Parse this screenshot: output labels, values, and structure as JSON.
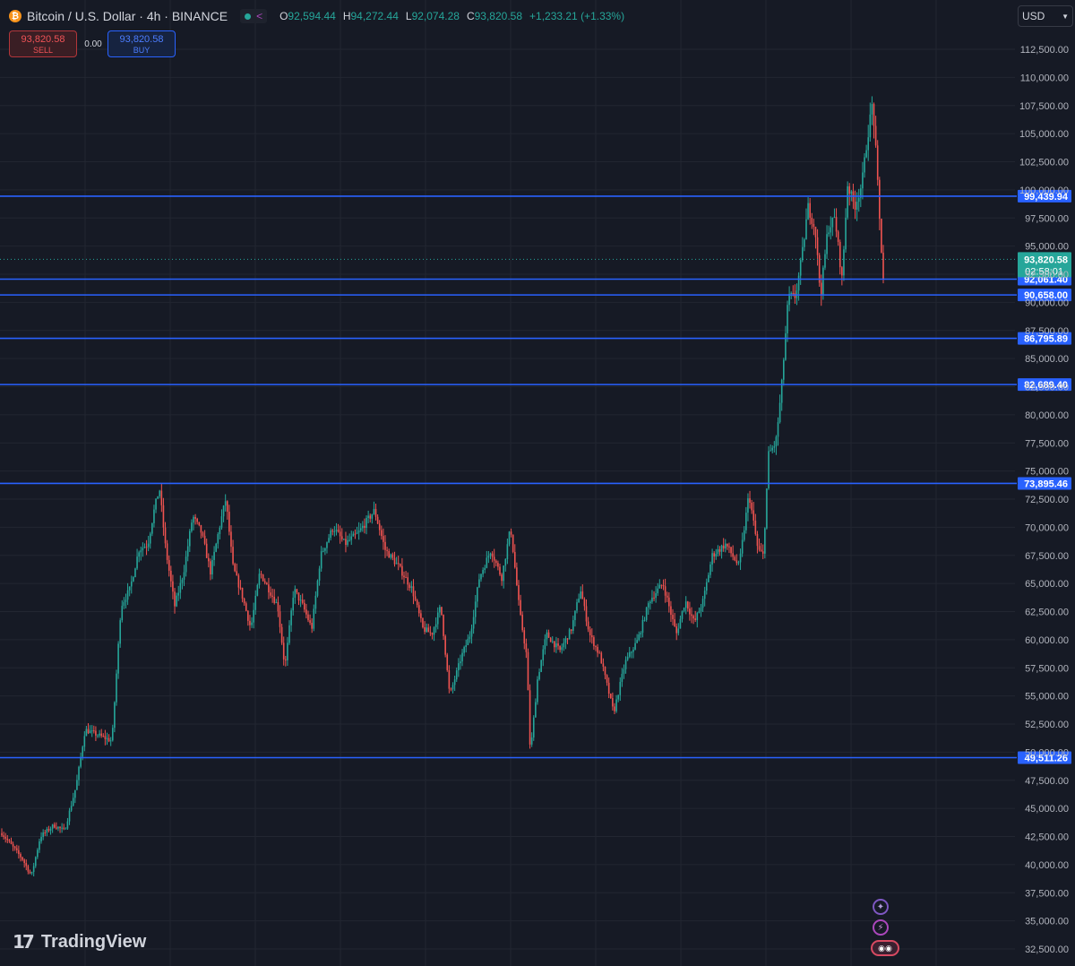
{
  "header": {
    "symbol_title": "Bitcoin / U.S. Dollar · 4h · BINANCE",
    "icon": "bitcoin-icon",
    "ohlc": {
      "o_label": "O",
      "o_value": "92,594.44",
      "h_label": "H",
      "h_value": "94,272.44",
      "l_label": "L",
      "l_value": "92,074.28",
      "c_label": "C",
      "c_value": "93,820.58",
      "change": "+1,233.21 (+1.33%)"
    },
    "status_color": "#26a69a"
  },
  "trade": {
    "sell_price": "93,820.58",
    "sell_label": "SELL",
    "spread": "0.00",
    "buy_price": "93,820.58",
    "buy_label": "BUY"
  },
  "currency": "USD",
  "logo": "TradingView",
  "colors": {
    "background": "#161a25",
    "grid": "#222631",
    "up": "#26a69a",
    "down": "#ef5350",
    "level_line": "#2962ff",
    "last_price": "#26a69a"
  },
  "chart_data": {
    "type": "candlestick",
    "interval": "4h",
    "ylim": [
      31000,
      114000
    ],
    "y_axis_ticks": [
      32500,
      35000,
      37500,
      40000,
      42500,
      45000,
      47500,
      50000,
      52500,
      55000,
      57500,
      60000,
      62500,
      65000,
      67500,
      70000,
      72500,
      75000,
      77500,
      80000,
      82500,
      85000,
      87500,
      90000,
      92500,
      95000,
      97500,
      100000,
      102500,
      105000,
      107500,
      110000,
      112500
    ],
    "y_axis_tick_labels": [
      "32,500.00",
      "35,000.00",
      "37,500.00",
      "40,000.00",
      "42,500.00",
      "45,000.00",
      "47,500.00",
      "50,000.00",
      "52,500.00",
      "55,000.00",
      "57,500.00",
      "60,000.00",
      "62,500.00",
      "65,000.00",
      "67,500.00",
      "70,000.00",
      "72,500.00",
      "75,000.00",
      "77,500.00",
      "80,000.00",
      "82,500.00",
      "85,000.00",
      "87,500.00",
      "90,000.00",
      "92,500.00",
      "95,000.00",
      "97,500.00",
      "100,000.00",
      "102,500.00",
      "105,000.00",
      "107,500.00",
      "110,000.00",
      "112,500.00"
    ],
    "horizontal_levels": [
      {
        "value": 99439.94,
        "label": "99,439.94"
      },
      {
        "value": 92061.4,
        "label": "92,061.40"
      },
      {
        "value": 90658.0,
        "label": "90,658.00"
      },
      {
        "value": 86795.89,
        "label": "86,795.89"
      },
      {
        "value": 82689.4,
        "label": "82,689.40"
      },
      {
        "value": 73895.46,
        "label": "73,895.46"
      },
      {
        "value": 49511.26,
        "label": "49,511.26"
      }
    ],
    "last_price": {
      "value": 93820.58,
      "label": "93,820.58",
      "countdown": "02:58:01"
    },
    "price_path_keypoints": [
      [
        0,
        43000
      ],
      [
        25,
        40500
      ],
      [
        35,
        39000
      ],
      [
        45,
        42500
      ],
      [
        60,
        43500
      ],
      [
        72,
        43000
      ],
      [
        85,
        47000
      ],
      [
        95,
        52000
      ],
      [
        110,
        51500
      ],
      [
        125,
        51000
      ],
      [
        135,
        63000
      ],
      [
        145,
        64500
      ],
      [
        155,
        68000
      ],
      [
        165,
        68500
      ],
      [
        172,
        71500
      ],
      [
        178,
        73500
      ],
      [
        185,
        68000
      ],
      [
        195,
        63000
      ],
      [
        205,
        66000
      ],
      [
        215,
        71000
      ],
      [
        225,
        69500
      ],
      [
        235,
        66000
      ],
      [
        245,
        70000
      ],
      [
        252,
        72500
      ],
      [
        260,
        66500
      ],
      [
        270,
        64000
      ],
      [
        280,
        61000
      ],
      [
        290,
        66000
      ],
      [
        300,
        64500
      ],
      [
        310,
        63000
      ],
      [
        318,
        57500
      ],
      [
        328,
        64500
      ],
      [
        338,
        63000
      ],
      [
        348,
        61000
      ],
      [
        358,
        67500
      ],
      [
        372,
        70000
      ],
      [
        385,
        68500
      ],
      [
        400,
        69500
      ],
      [
        418,
        71500
      ],
      [
        430,
        68000
      ],
      [
        445,
        66500
      ],
      [
        460,
        64500
      ],
      [
        472,
        61000
      ],
      [
        482,
        60500
      ],
      [
        492,
        63000
      ],
      [
        502,
        55000
      ],
      [
        515,
        58500
      ],
      [
        525,
        60500
      ],
      [
        535,
        65500
      ],
      [
        548,
        68000
      ],
      [
        560,
        65500
      ],
      [
        570,
        70000
      ],
      [
        580,
        62500
      ],
      [
        588,
        58500
      ],
      [
        592,
        49800
      ],
      [
        600,
        56500
      ],
      [
        610,
        60500
      ],
      [
        625,
        59000
      ],
      [
        638,
        61000
      ],
      [
        648,
        64500
      ],
      [
        658,
        60500
      ],
      [
        670,
        58500
      ],
      [
        685,
        53500
      ],
      [
        698,
        58000
      ],
      [
        712,
        60000
      ],
      [
        725,
        63500
      ],
      [
        740,
        65000
      ],
      [
        755,
        60500
      ],
      [
        765,
        63500
      ],
      [
        775,
        61500
      ],
      [
        785,
        63500
      ],
      [
        795,
        67500
      ],
      [
        810,
        68500
      ],
      [
        825,
        66500
      ],
      [
        836,
        73000
      ],
      [
        846,
        68000
      ],
      [
        852,
        67500
      ],
      [
        858,
        76500
      ],
      [
        866,
        77500
      ],
      [
        872,
        82000
      ],
      [
        880,
        90500
      ],
      [
        888,
        90500
      ],
      [
        895,
        94000
      ],
      [
        902,
        98500
      ],
      [
        910,
        96500
      ],
      [
        916,
        90500
      ],
      [
        924,
        96500
      ],
      [
        932,
        97500
      ],
      [
        940,
        92000
      ],
      [
        946,
        100500
      ],
      [
        954,
        98500
      ],
      [
        962,
        100500
      ],
      [
        968,
        104500
      ],
      [
        974,
        107800
      ],
      [
        978,
        103000
      ],
      [
        982,
        97000
      ],
      [
        986,
        92100
      ]
    ]
  }
}
